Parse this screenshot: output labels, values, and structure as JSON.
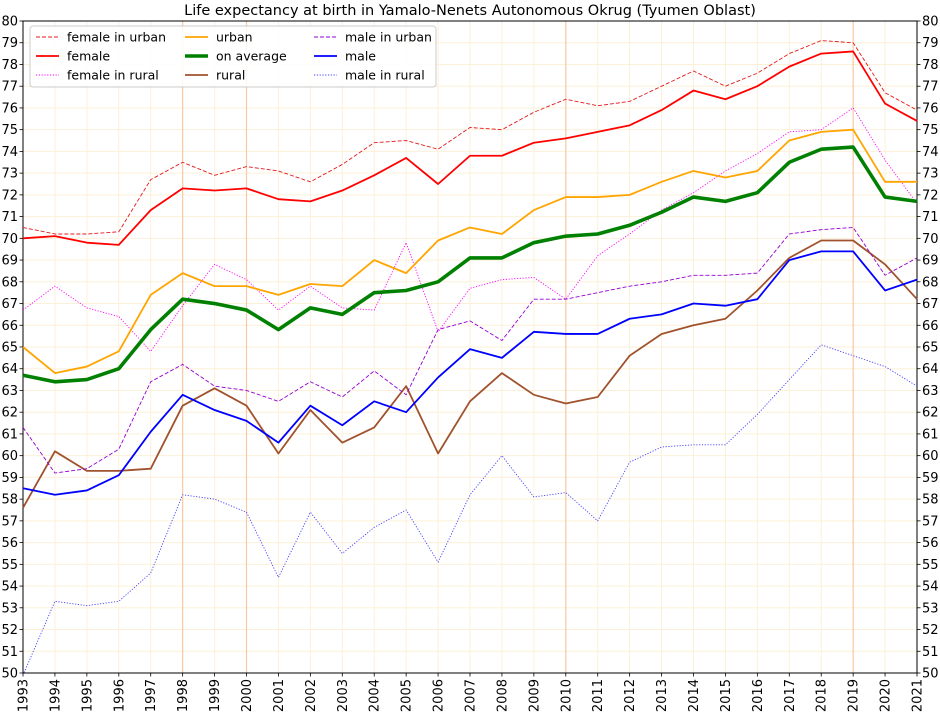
{
  "chart_data": {
    "type": "line",
    "title": "Life expectancy at birth in Yamalo-Nenets Autonomous Okrug (Tyumen Oblast)",
    "xlabel": "",
    "ylabel": "",
    "xlim": [
      1993,
      2021
    ],
    "ylim": [
      50,
      80
    ],
    "grid": true,
    "legend_position": "top-left",
    "x": [
      1993,
      1994,
      1995,
      1996,
      1997,
      1998,
      1999,
      2000,
      2001,
      2002,
      2003,
      2004,
      2005,
      2006,
      2007,
      2008,
      2009,
      2010,
      2011,
      2012,
      2013,
      2014,
      2015,
      2016,
      2017,
      2018,
      2019,
      2020,
      2021
    ],
    "highlight_years": [
      1998,
      2000,
      2010,
      2019
    ],
    "series": [
      {
        "name": "female in urban",
        "color": "#e41a1c",
        "style": "dashed-thin",
        "values": [
          70.5,
          70.2,
          70.2,
          70.3,
          72.7,
          73.5,
          72.9,
          73.3,
          73.1,
          72.6,
          73.4,
          74.4,
          74.5,
          74.1,
          75.1,
          75.0,
          75.8,
          76.4,
          76.1,
          76.3,
          77.0,
          77.7,
          77.0,
          77.6,
          78.5,
          79.1,
          79.0,
          76.7,
          75.9
        ]
      },
      {
        "name": "female",
        "color": "#ff0000",
        "style": "solid",
        "values": [
          70.0,
          70.1,
          69.8,
          69.7,
          71.3,
          72.3,
          72.2,
          72.3,
          71.8,
          71.7,
          72.2,
          72.9,
          73.7,
          72.5,
          73.8,
          73.8,
          74.4,
          74.6,
          74.9,
          75.2,
          75.9,
          76.8,
          76.4,
          77.0,
          77.9,
          78.5,
          78.6,
          76.2,
          75.4
        ]
      },
      {
        "name": "female in rural",
        "color": "#ff00ff",
        "style": "dotted",
        "values": [
          66.7,
          67.8,
          66.8,
          66.4,
          64.8,
          66.9,
          68.8,
          68.1,
          66.7,
          67.8,
          66.8,
          66.7,
          69.8,
          65.7,
          67.7,
          68.1,
          68.2,
          67.2,
          69.2,
          70.2,
          71.3,
          72.1,
          73.1,
          73.9,
          74.9,
          75.0,
          76.0,
          73.6,
          71.6
        ]
      },
      {
        "name": "urban",
        "color": "#ffa500",
        "style": "solid",
        "values": [
          65.0,
          63.8,
          64.1,
          64.8,
          67.4,
          68.4,
          67.8,
          67.8,
          67.4,
          67.9,
          67.8,
          69.0,
          68.4,
          69.9,
          70.5,
          70.2,
          71.3,
          71.9,
          71.9,
          72.0,
          72.6,
          73.1,
          72.8,
          73.1,
          74.5,
          74.9,
          75.0,
          72.6,
          72.6
        ]
      },
      {
        "name": "on average",
        "color": "#008000",
        "style": "solid-thick",
        "values": [
          63.7,
          63.4,
          63.5,
          64.0,
          65.8,
          67.2,
          67.0,
          66.7,
          65.8,
          66.8,
          66.5,
          67.5,
          67.6,
          68.0,
          69.1,
          69.1,
          69.8,
          70.1,
          70.2,
          70.6,
          71.2,
          71.9,
          71.7,
          72.1,
          73.5,
          74.1,
          74.2,
          71.9,
          71.7
        ]
      },
      {
        "name": "rural",
        "color": "#a0522d",
        "style": "solid",
        "values": [
          57.6,
          60.2,
          59.3,
          59.3,
          59.4,
          62.3,
          63.1,
          62.3,
          60.1,
          62.1,
          60.6,
          61.3,
          63.2,
          60.1,
          62.5,
          63.8,
          62.8,
          62.4,
          62.7,
          64.6,
          65.6,
          66.0,
          66.3,
          67.6,
          69.1,
          69.9,
          69.9,
          68.8,
          67.2
        ]
      },
      {
        "name": "male in urban",
        "color": "#9400d3",
        "style": "dashed-thin",
        "values": [
          61.3,
          59.2,
          59.4,
          60.3,
          63.4,
          64.2,
          63.2,
          63.0,
          62.5,
          63.4,
          62.7,
          63.9,
          62.8,
          65.8,
          66.2,
          65.3,
          67.2,
          67.2,
          67.5,
          67.8,
          68.0,
          68.3,
          68.3,
          68.4,
          70.2,
          70.4,
          70.5,
          68.3,
          69.1
        ]
      },
      {
        "name": "male",
        "color": "#0000ff",
        "style": "solid",
        "values": [
          58.5,
          58.2,
          58.4,
          59.1,
          61.1,
          62.8,
          62.1,
          61.6,
          60.6,
          62.3,
          61.4,
          62.5,
          62.0,
          63.6,
          64.9,
          64.5,
          65.7,
          65.6,
          65.6,
          66.3,
          66.5,
          67.0,
          66.9,
          67.2,
          69.0,
          69.4,
          69.4,
          67.6,
          68.1
        ]
      },
      {
        "name": "male in rural",
        "color": "#4040ff",
        "style": "dotted",
        "values": [
          49.9,
          53.3,
          53.1,
          53.3,
          54.6,
          58.2,
          58.0,
          57.4,
          54.4,
          57.4,
          55.5,
          56.7,
          57.5,
          55.1,
          58.2,
          60.0,
          58.1,
          58.3,
          57.0,
          59.7,
          60.4,
          60.5,
          60.5,
          61.9,
          63.5,
          65.1,
          64.6,
          64.1,
          63.2
        ]
      }
    ]
  }
}
